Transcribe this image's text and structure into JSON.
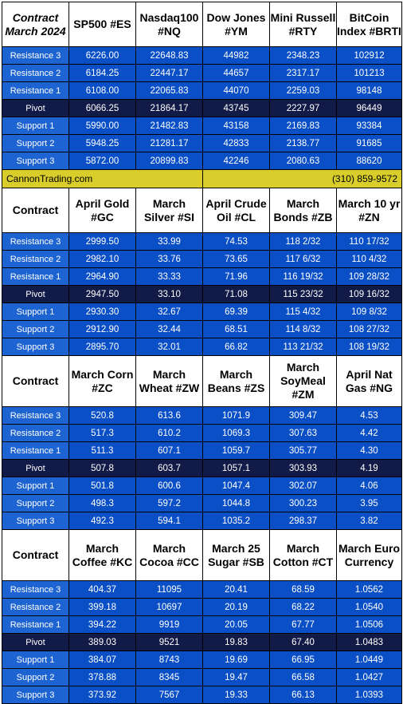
{
  "colors": {
    "header_bg": "#ffffff",
    "level_row_bg": "#1d63d1",
    "pivot_row_bg": "#121a47",
    "brand_bar_bg": "#d8cd2a",
    "row_text": "#ffffff"
  },
  "brand": {
    "site": "CannonTrading.com",
    "phone": "(310) 859-9572"
  },
  "row_labels": [
    "Resistance 3",
    "Resistance 2",
    "Resistance 1",
    "Pivot",
    "Support 1",
    "Support 2",
    "Support 3"
  ],
  "tables": [
    {
      "corner": "Contract March 2024",
      "headers": [
        "SP500 #ES",
        "Nasdaq100 #NQ",
        "Dow Jones #YM",
        "Mini Russell #RTY",
        "BitCoin Index #BRTI"
      ],
      "rows": [
        [
          "6226.00",
          "22648.83",
          "44982",
          "2348.23",
          "102912"
        ],
        [
          "6184.25",
          "22447.17",
          "44657",
          "2317.17",
          "101213"
        ],
        [
          "6108.00",
          "22065.83",
          "44070",
          "2259.03",
          "98148"
        ],
        [
          "6066.25",
          "21864.17",
          "43745",
          "2227.97",
          "96449"
        ],
        [
          "5990.00",
          "21482.83",
          "43158",
          "2169.83",
          "93384"
        ],
        [
          "5948.25",
          "21281.17",
          "42833",
          "2138.77",
          "91685"
        ],
        [
          "5872.00",
          "20899.83",
          "42246",
          "2080.63",
          "88620"
        ]
      ]
    },
    {
      "corner": "Contract",
      "headers": [
        "April Gold #GC",
        "March Silver #SI",
        "April Crude Oil #CL",
        "March Bonds  #ZB",
        "March 10 yr #ZN"
      ],
      "rows": [
        [
          "2999.50",
          "33.99",
          "74.53",
          "118  2/32",
          "110 17/32"
        ],
        [
          "2982.10",
          "33.76",
          "73.65",
          "117  6/32",
          "110  4/32"
        ],
        [
          "2964.90",
          "33.33",
          "71.96",
          "116 19/32",
          "109 28/32"
        ],
        [
          "2947.50",
          "33.10",
          "71.08",
          "115 23/32",
          "109 16/32"
        ],
        [
          "2930.30",
          "32.67",
          "69.39",
          "115  4/32",
          "109  8/32"
        ],
        [
          "2912.90",
          "32.44",
          "68.51",
          "114  8/32",
          "108 27/32"
        ],
        [
          "2895.70",
          "32.01",
          "66.82",
          "113 21/32",
          "108 19/32"
        ]
      ]
    },
    {
      "corner": "Contract",
      "headers": [
        "March Corn #ZC",
        "March Wheat #ZW",
        "March Beans #ZS",
        "March SoyMeal #ZM",
        "April Nat Gas #NG"
      ],
      "rows": [
        [
          "520.8",
          "613.6",
          "1071.9",
          "309.47",
          "4.53"
        ],
        [
          "517.3",
          "610.2",
          "1069.3",
          "307.63",
          "4.42"
        ],
        [
          "511.3",
          "607.1",
          "1059.7",
          "305.77",
          "4.30"
        ],
        [
          "507.8",
          "603.7",
          "1057.1",
          "303.93",
          "4.19"
        ],
        [
          "501.8",
          "600.6",
          "1047.4",
          "302.07",
          "4.06"
        ],
        [
          "498.3",
          "597.2",
          "1044.8",
          "300.23",
          "3.95"
        ],
        [
          "492.3",
          "594.1",
          "1035.2",
          "298.37",
          "3.82"
        ]
      ]
    },
    {
      "corner": "Contract",
      "headers": [
        "March Coffee #KC",
        "March Cocoa #CC",
        "March 25 Sugar #SB",
        "March Cotton #CT",
        "March Euro Currency"
      ],
      "rows": [
        [
          "404.37",
          "11095",
          "20.41",
          "68.59",
          "1.0562"
        ],
        [
          "399.18",
          "10697",
          "20.19",
          "68.22",
          "1.0540"
        ],
        [
          "394.22",
          "9919",
          "20.05",
          "67.77",
          "1.0506"
        ],
        [
          "389.03",
          "9521",
          "19.83",
          "67.40",
          "1.0483"
        ],
        [
          "384.07",
          "8743",
          "19.69",
          "66.95",
          "1.0449"
        ],
        [
          "378.88",
          "8345",
          "19.47",
          "66.58",
          "1.0427"
        ],
        [
          "373.92",
          "7567",
          "19.33",
          "66.13",
          "1.0393"
        ]
      ]
    }
  ]
}
